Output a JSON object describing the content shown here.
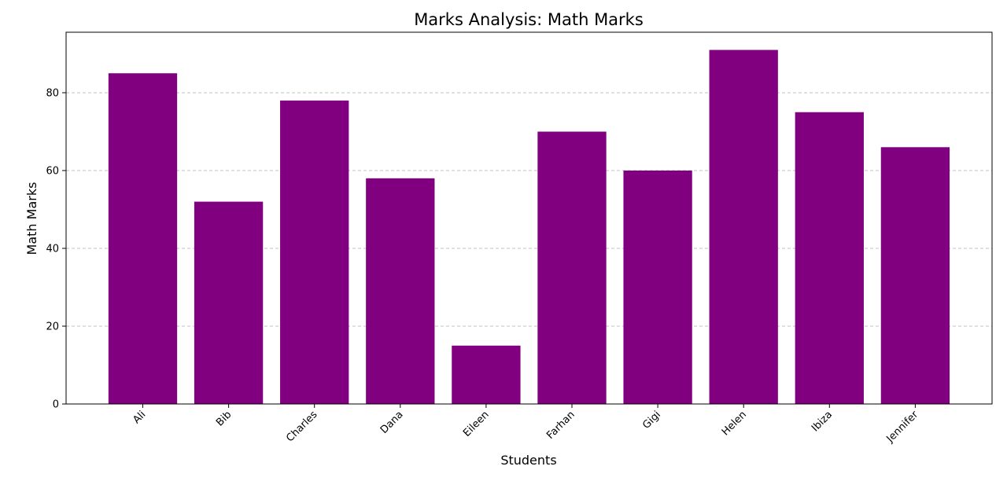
{
  "chart_data": {
    "type": "bar",
    "title": "Marks Analysis: Math Marks",
    "xlabel": "Students",
    "ylabel": "Math Marks",
    "categories": [
      "Ali",
      "Bib",
      "Charles",
      "Dana",
      "Eileen",
      "Farhan",
      "Gigi",
      "Helen",
      "Ibiza",
      "Jennifer"
    ],
    "values": [
      85,
      52,
      78,
      58,
      15,
      70,
      60,
      91,
      75,
      66
    ],
    "ylim": [
      0,
      95.55
    ],
    "yticks": [
      0,
      20,
      40,
      60,
      80
    ],
    "grid": "y-dashed",
    "bar_color": "#800080",
    "legend": "none"
  }
}
